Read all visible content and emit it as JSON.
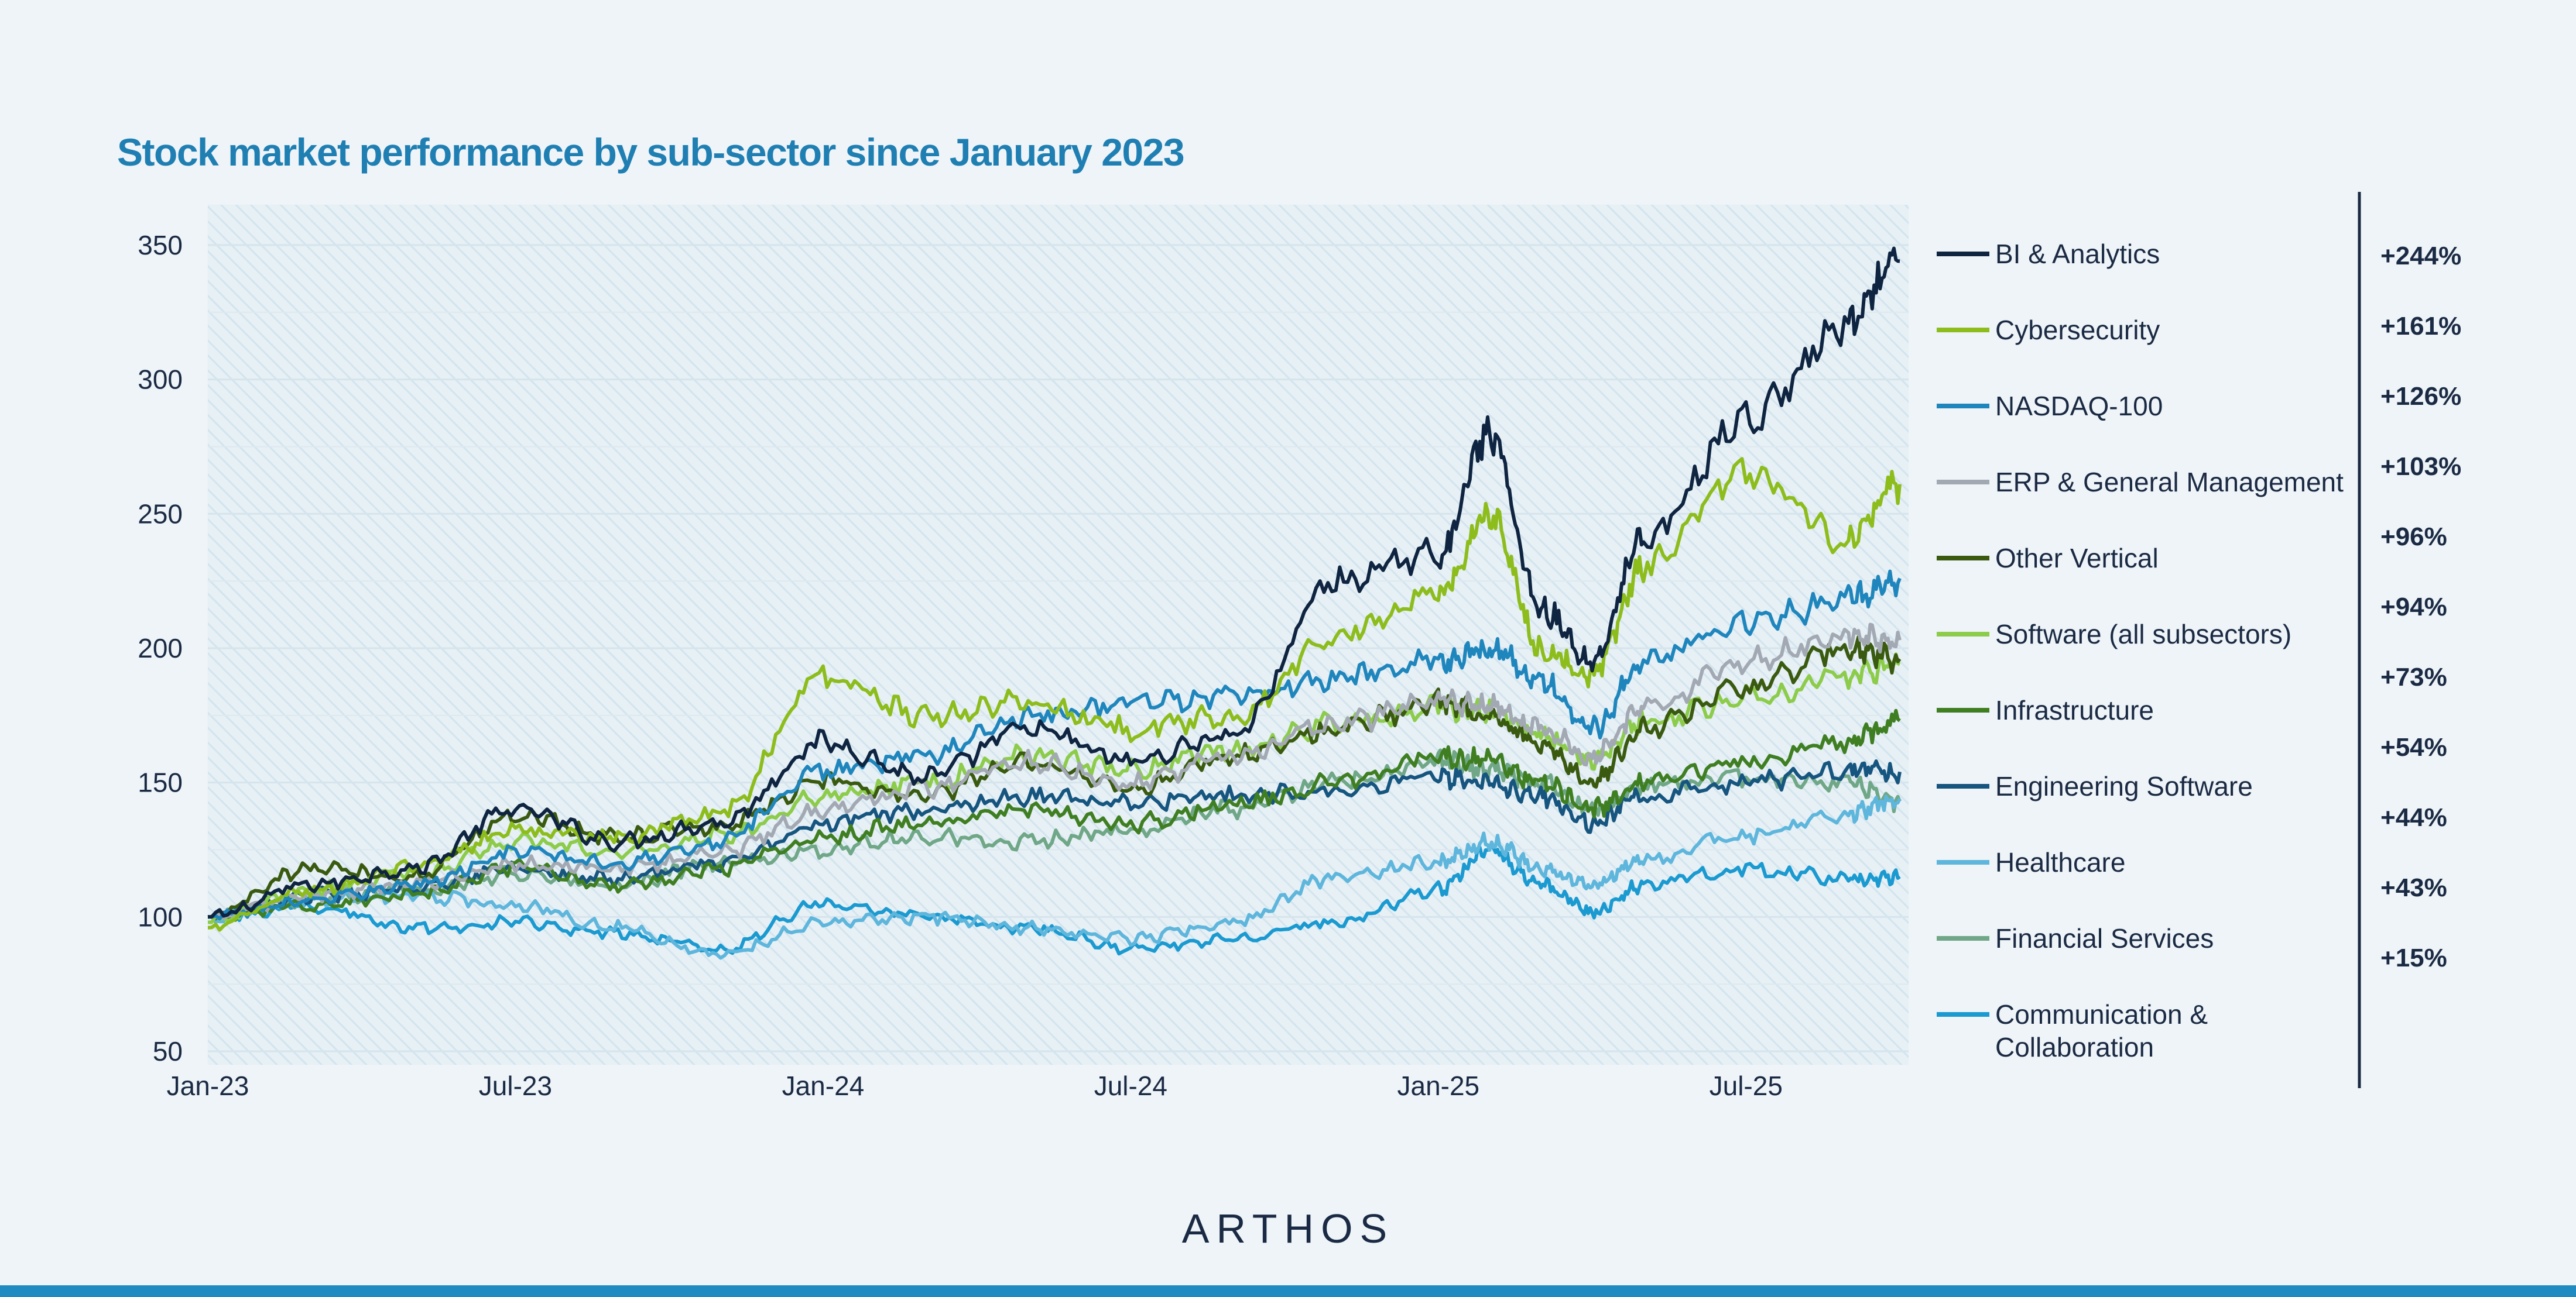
{
  "page": {
    "brand": "ARTHOS"
  },
  "chart_data": {
    "type": "line",
    "title": "Stock market performance by sub-sector since January 2023",
    "xlabel": "",
    "ylabel": "",
    "x_ticks": [
      "Jan-23",
      "Jul-23",
      "Jan-24",
      "Jul-24",
      "Jan-25",
      "Jul-25"
    ],
    "x_range": [
      "2023-01-01",
      "2025-10-31"
    ],
    "y_ticks": [
      50,
      100,
      150,
      200,
      250,
      300,
      350
    ],
    "ylim": [
      45,
      365
    ],
    "grid": "horizontal",
    "legend": "right",
    "x": [
      "2023-01",
      "2023-03",
      "2023-05",
      "2023-07",
      "2023-09",
      "2023-11",
      "2024-01",
      "2024-03",
      "2024-05",
      "2024-07",
      "2024-09",
      "2024-11",
      "2025-01",
      "2025-02",
      "2025-03",
      "2025-04",
      "2025-05",
      "2025-07",
      "2025-09",
      "2025-10"
    ],
    "series": [
      {
        "name": "BI & Analytics",
        "change": "+244%",
        "color": "#0e2440",
        "values": [
          100,
          112,
          118,
          140,
          128,
          135,
          165,
          152,
          170,
          158,
          168,
          225,
          235,
          280,
          215,
          195,
          240,
          285,
          320,
          344
        ]
      },
      {
        "name": "Cybersecurity",
        "change": "+161%",
        "color": "#8dbd1c",
        "values": [
          96,
          110,
          118,
          132,
          130,
          138,
          190,
          175,
          180,
          170,
          175,
          205,
          220,
          250,
          200,
          190,
          230,
          265,
          240,
          261
        ]
      },
      {
        "name": "NASDAQ-100",
        "change": "+126%",
        "color": "#1f86bd",
        "values": [
          100,
          106,
          112,
          124,
          120,
          128,
          155,
          160,
          175,
          180,
          182,
          188,
          195,
          200,
          188,
          170,
          195,
          210,
          218,
          226
        ]
      },
      {
        "name": "ERP & General Management",
        "change": "+103%",
        "color": "#a3a9b3",
        "values": [
          100,
          108,
          112,
          120,
          118,
          124,
          140,
          148,
          158,
          150,
          160,
          172,
          180,
          178,
          170,
          160,
          178,
          195,
          205,
          203
        ]
      },
      {
        "name": "Other Vertical",
        "change": "+96%",
        "color": "#3a5a10",
        "values": [
          100,
          118,
          115,
          138,
          130,
          134,
          150,
          145,
          158,
          148,
          160,
          170,
          180,
          175,
          165,
          150,
          170,
          185,
          200,
          196
        ]
      },
      {
        "name": "Software (all subsectors)",
        "change": "+94%",
        "color": "#8ccc4a",
        "values": [
          98,
          110,
          116,
          128,
          124,
          130,
          145,
          150,
          160,
          155,
          162,
          172,
          178,
          176,
          168,
          158,
          172,
          182,
          190,
          194
        ]
      },
      {
        "name": "Infrastructure",
        "change": "+73%",
        "color": "#3f7f22",
        "values": [
          100,
          104,
          108,
          118,
          112,
          118,
          130,
          135,
          140,
          135,
          142,
          150,
          160,
          158,
          150,
          140,
          150,
          158,
          165,
          173
        ]
      },
      {
        "name": "Engineering Software",
        "change": "+54%",
        "color": "#16557f",
        "values": [
          100,
          108,
          110,
          118,
          114,
          120,
          135,
          140,
          145,
          142,
          145,
          148,
          152,
          150,
          145,
          135,
          145,
          150,
          155,
          154
        ]
      },
      {
        "name": "Healthcare",
        "change": "+44%",
        "color": "#5eb6dc",
        "values": [
          100,
          106,
          108,
          104,
          96,
          86,
          98,
          100,
          96,
          92,
          98,
          115,
          120,
          128,
          118,
          112,
          122,
          130,
          138,
          144
        ]
      },
      {
        "name": "Financial Services",
        "change": "+43%",
        "color": "#6fa787",
        "values": [
          100,
          106,
          110,
          116,
          112,
          120,
          125,
          130,
          128,
          132,
          140,
          150,
          158,
          155,
          150,
          140,
          148,
          152,
          150,
          143
        ]
      },
      {
        "name": "Communication & Collaboration",
        "change": "+15%",
        "color": "#1a9ad0",
        "values": [
          100,
          104,
          96,
          98,
          94,
          88,
          105,
          100,
          96,
          88,
          92,
          98,
          110,
          125,
          112,
          102,
          112,
          118,
          114,
          115
        ]
      }
    ]
  }
}
